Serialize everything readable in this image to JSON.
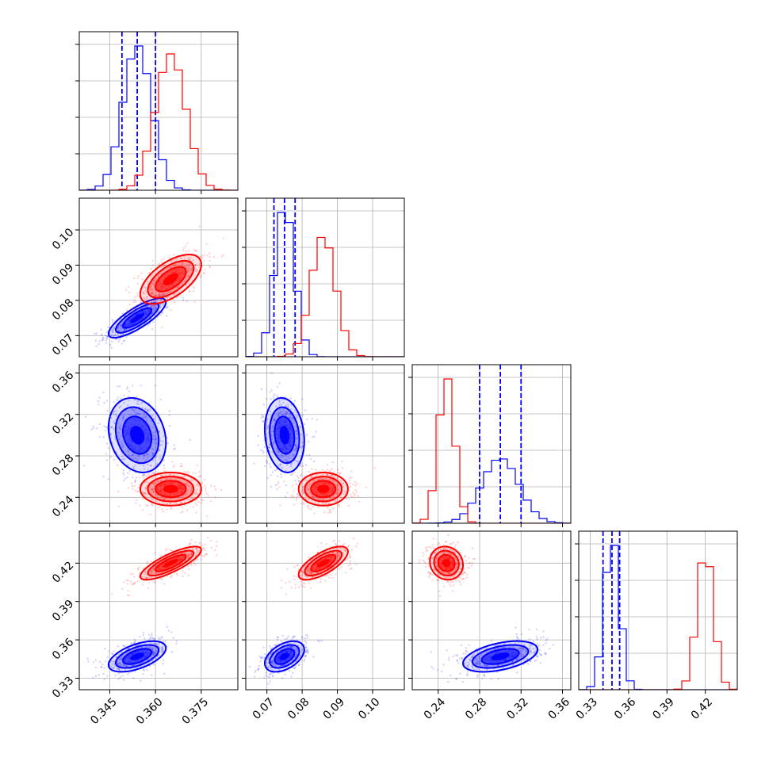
{
  "chart_data": {
    "type": "corner",
    "parameters": 4,
    "grid": true,
    "colors": {
      "blue": "#0000ff",
      "red": "#ff0000"
    },
    "axes": {
      "p0": {
        "range": [
          0.335,
          0.387
        ],
        "ticks": [
          0.345,
          0.36,
          0.375
        ],
        "tick_labels": [
          "0.345",
          "0.360",
          "0.375"
        ]
      },
      "p1": {
        "range": [
          0.064,
          0.109
        ],
        "ticks": [
          0.07,
          0.08,
          0.09,
          0.1
        ],
        "tick_labels": [
          "0.07",
          "0.08",
          "0.09",
          "0.10"
        ]
      },
      "p2": {
        "range": [
          0.215,
          0.368
        ],
        "ticks": [
          0.24,
          0.28,
          0.32,
          0.36
        ],
        "tick_labels": [
          "0.24",
          "0.28",
          "0.32",
          "0.36"
        ]
      },
      "p3": {
        "range": [
          0.321,
          0.445
        ],
        "ticks": [
          0.33,
          0.36,
          0.39,
          0.42
        ],
        "tick_labels": [
          "0.33",
          "0.36",
          "0.39",
          "0.42"
        ]
      }
    },
    "series": [
      {
        "color": "blue",
        "means": [
          0.354,
          0.075,
          0.3,
          0.347
        ],
        "stds": [
          0.0047,
          0.0028,
          0.018,
          0.006
        ],
        "correlations": {
          "0-1": 0.8,
          "0-2": -0.2,
          "1-2": -0.15,
          "0-3": 0.55,
          "1-3": 0.45,
          "2-3": 0.45
        },
        "quantiles": [
          [
            0.349,
            0.354,
            0.36
          ],
          [
            0.072,
            0.075,
            0.078
          ],
          [
            0.28,
            0.3,
            0.32
          ],
          [
            0.34,
            0.347,
            0.353
          ]
        ]
      },
      {
        "color": "red",
        "means": [
          0.365,
          0.086,
          0.248,
          0.42
        ],
        "stds": [
          0.005,
          0.0035,
          0.008,
          0.0065
        ],
        "correlations": {
          "0-1": 0.6,
          "0-2": 0.0,
          "1-2": 0.0,
          "0-3": 0.8,
          "1-3": 0.7,
          "2-3": -0.1
        }
      }
    ]
  }
}
